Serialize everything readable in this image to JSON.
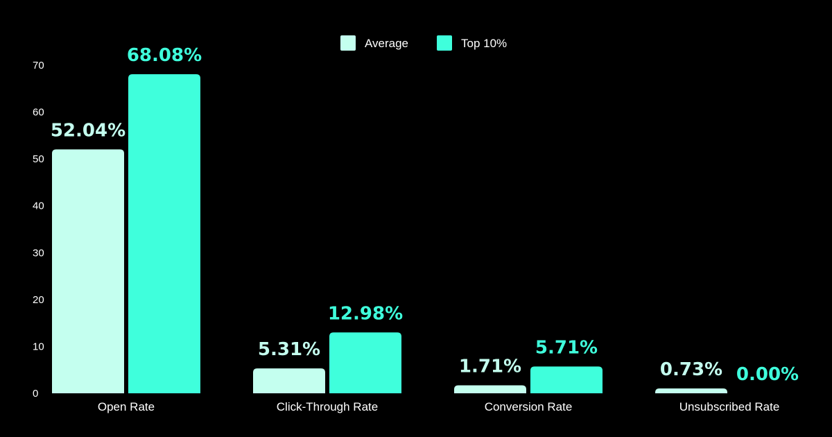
{
  "chart_data": {
    "type": "bar",
    "categories": [
      "Open Rate",
      "Click-Through Rate",
      "Conversion Rate",
      "Unsubscribed Rate"
    ],
    "series": [
      {
        "name": "Average",
        "values": [
          52.04,
          5.31,
          1.71,
          0.73
        ],
        "labels": [
          "52.04%",
          "5.31%",
          "1.71%",
          "0.73%"
        ],
        "color": "#C4FFEF"
      },
      {
        "name": "Top 10%",
        "values": [
          68.08,
          12.98,
          5.71,
          0.0
        ],
        "labels": [
          "68.08%",
          "12.98%",
          "5.71%",
          "0.00%"
        ],
        "color": "#3FFFDC"
      }
    ],
    "title": "",
    "xlabel": "",
    "ylabel": "",
    "ylim": [
      0,
      70
    ],
    "yticks": [
      "0",
      "10",
      "20",
      "30",
      "40",
      "50",
      "60",
      "70"
    ],
    "grid": false,
    "legend_position": "top-center",
    "background": "#000000"
  }
}
